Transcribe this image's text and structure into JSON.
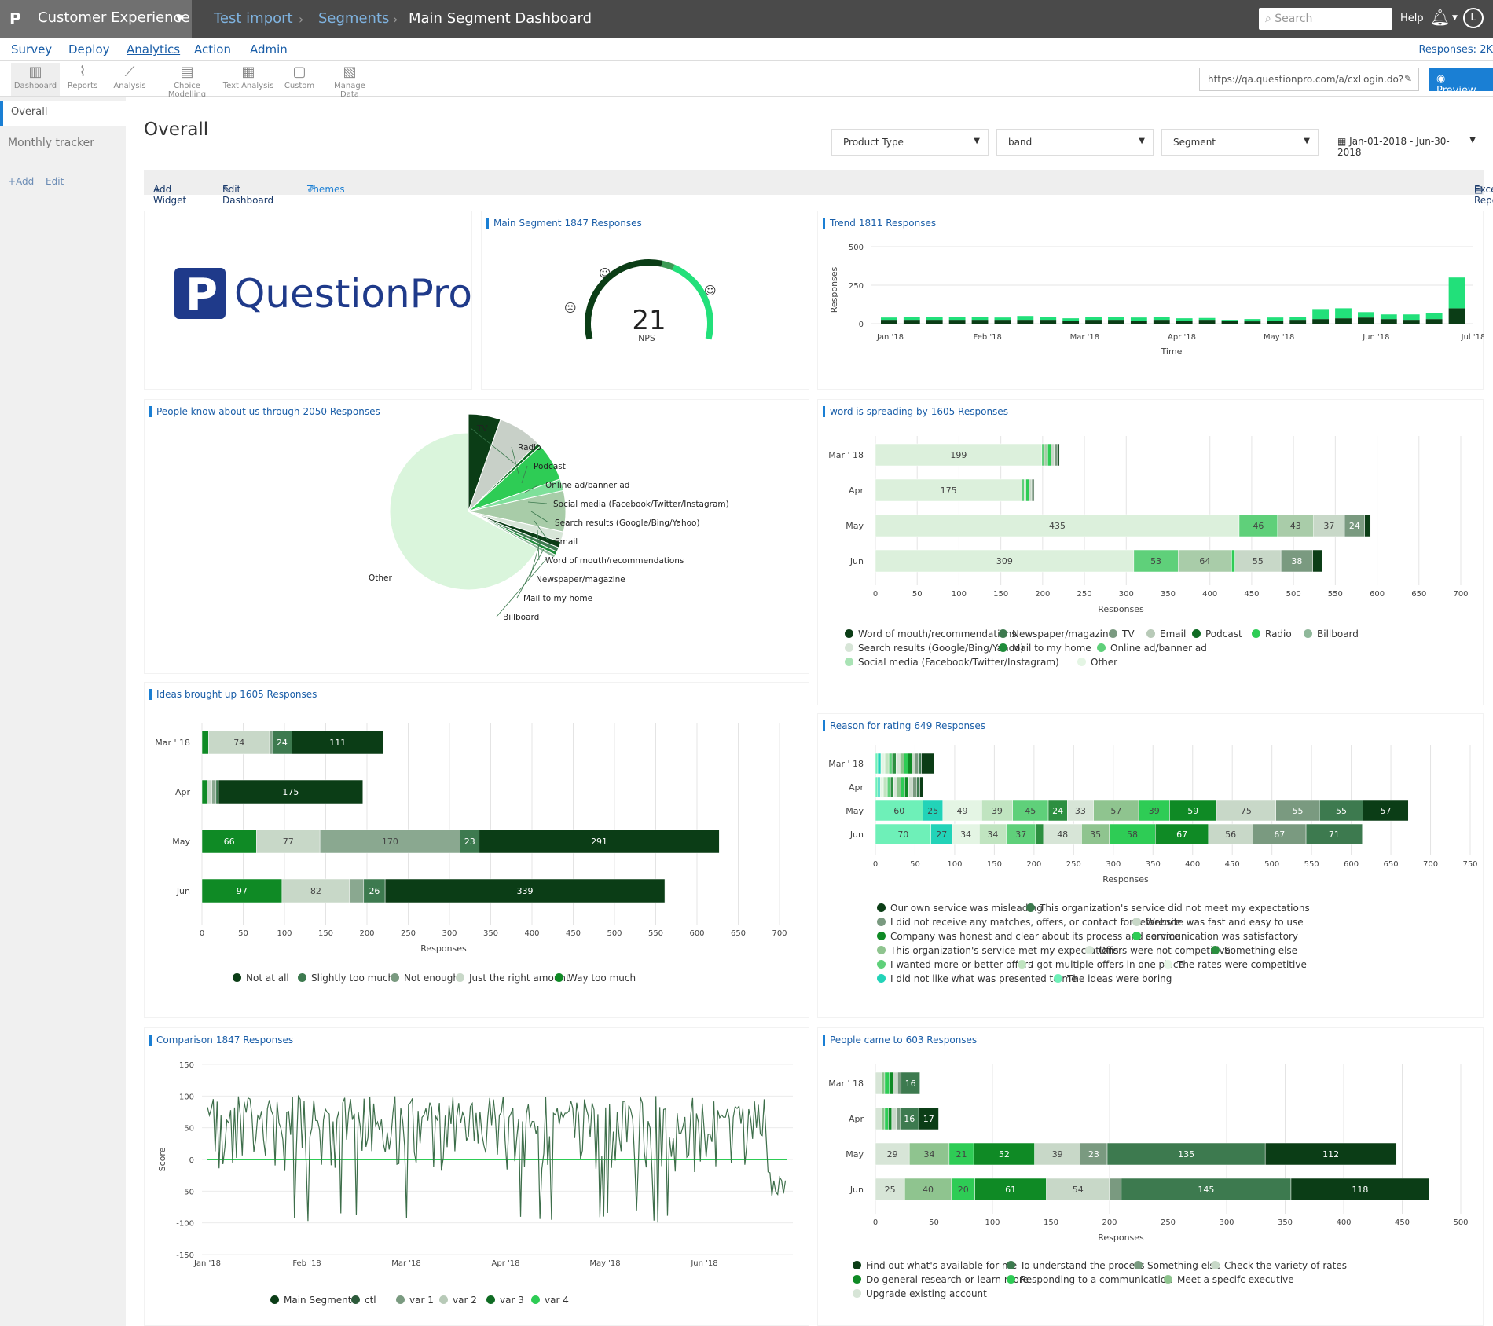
{
  "header": {
    "app_name": "Customer Experience",
    "crumbs": [
      "Test import",
      "Segments",
      "Main Segment Dashboard"
    ],
    "search_placeholder": "Search",
    "help": "Help",
    "avatar": "L"
  },
  "nav": {
    "items": [
      "Survey",
      "Deploy",
      "Analytics",
      "Action",
      "Admin"
    ],
    "active": "Analytics",
    "responses": "Responses: 2K"
  },
  "toolbar": {
    "items": [
      "Dashboard",
      "Reports",
      "Analysis",
      "Choice Modelling",
      "Text Analysis",
      "Custom",
      "Manage Data"
    ],
    "url": "https://qa.questionpro.com/a/cxLogin.do?",
    "preview": "Preview"
  },
  "sidebar": {
    "items": [
      "Overall",
      "Monthly tracker"
    ],
    "add": "+Add",
    "edit": "Edit"
  },
  "page": {
    "title": "Overall",
    "filters": [
      "Product Type",
      "band",
      "Segment"
    ],
    "date_range": "Jan-01-2018 - Jun-30-2018",
    "add_widget": "Add Widget",
    "edit_dashboard": "Edit Dashboard",
    "themes": "Themes",
    "excel_report": "Excel Report"
  },
  "logo_text": "QuestionPro",
  "colors": {
    "dark": "#0b4a1a",
    "mid": "#3d7a4f",
    "bright": "#2ecc55",
    "light": "#c8dcc8",
    "pale": "#e4f5e4",
    "accent": "#1a7fd4"
  },
  "widgets": {
    "nps": {
      "title": "Main Segment",
      "count": "1847 Responses",
      "value": "21",
      "label": "NPS"
    },
    "trend": {
      "title": "Trend",
      "count": "1811 Responses",
      "ylabel": "Responses",
      "xlabel": "Time",
      "yticks": [
        "500",
        "250",
        "0"
      ],
      "xticks": [
        "Jan '18",
        "Feb '18",
        "Mar '18",
        "Apr '18",
        "May '18",
        "Jun '18",
        "Jul '18"
      ]
    },
    "pie": {
      "title": "People know about us through",
      "count": "2050 Responses"
    },
    "spread": {
      "title": "word is spreading by",
      "count": "1605 Responses",
      "xlabel": "Responses"
    },
    "ideas": {
      "title": "Ideas brought up",
      "count": "1605 Responses",
      "xlabel": "Responses"
    },
    "reason": {
      "title": "Reason for rating",
      "count": "649 Responses",
      "xlabel": "Responses"
    },
    "comparison": {
      "title": "Comparison",
      "count": "1847 Responses",
      "ylabel": "Score"
    },
    "came": {
      "title": "People came to",
      "count": "603 Responses",
      "xlabel": "Responses"
    }
  },
  "chart_data": [
    {
      "type": "gauge",
      "title": "Main Segment",
      "value": 21,
      "label": "NPS"
    },
    {
      "type": "bar",
      "title": "Trend",
      "xlabel": "Time",
      "ylabel": "Responses",
      "ylim": [
        0,
        500
      ],
      "x": [
        "Jan 1",
        "Jan 8",
        "Jan 15",
        "Jan 22",
        "Jan 29",
        "Feb 5",
        "Feb 12",
        "Feb 19",
        "Feb 26",
        "Mar 5",
        "Mar 12",
        "Mar 19",
        "Mar 26",
        "Apr 2",
        "Apr 9",
        "Apr 16",
        "Apr 23",
        "Apr 30",
        "May 7",
        "May 14",
        "May 21",
        "May 28",
        "Jun 4",
        "Jun 11",
        "Jun 18",
        "Jun 25"
      ],
      "series": [
        {
          "values": [
            25,
            25,
            25,
            25,
            25,
            25,
            25,
            25,
            20,
            25,
            25,
            20,
            25,
            20,
            25,
            20,
            15,
            20,
            25,
            30,
            35,
            40,
            30,
            25,
            30,
            100
          ]
        },
        {
          "values": [
            15,
            20,
            20,
            20,
            18,
            15,
            25,
            20,
            15,
            20,
            20,
            20,
            20,
            15,
            12,
            5,
            15,
            20,
            20,
            65,
            65,
            35,
            30,
            35,
            40,
            200
          ]
        }
      ],
      "xticks": [
        "Jan '18",
        "Feb '18",
        "Mar '18",
        "Apr '18",
        "May '18",
        "Jun '18",
        "Jul '18"
      ]
    },
    {
      "type": "pie",
      "title": "People know about us through",
      "slices": [
        {
          "label": "TV",
          "value": 110
        },
        {
          "label": "Radio",
          "value": 150
        },
        {
          "label": "Podcast",
          "value": 12
        },
        {
          "label": "Online ad/banner ad",
          "value": 130
        },
        {
          "label": "Social media (Facebook/Twitter/Instagram)",
          "value": 40
        },
        {
          "label": "Search results (Google/Bing/Yahoo)",
          "value": 140
        },
        {
          "label": "Email",
          "value": 35
        },
        {
          "label": "Word of mouth/recommendations",
          "value": 20
        },
        {
          "label": "Newspaper/magazine",
          "value": 15
        },
        {
          "label": "Mail to my home",
          "value": 12
        },
        {
          "label": "Billboard",
          "value": 10
        },
        {
          "label": "Other",
          "value": 1376
        }
      ]
    },
    {
      "type": "bar",
      "title": "word is spreading by",
      "orientation": "horizontal",
      "stacked": true,
      "xlabel": "Responses",
      "xlim": [
        0,
        700
      ],
      "categories": [
        "Mar ' 18",
        "Apr",
        "May",
        "Jun"
      ],
      "series": [
        {
          "name": "Other",
          "values": [
            199,
            175,
            435,
            309
          ]
        },
        {
          "name": "Online ad/banner ad",
          "values": [
            3,
            3,
            46,
            53
          ]
        },
        {
          "name": "Search results (Google/Bing/Yahoo)",
          "values": [
            4,
            2,
            43,
            64
          ]
        },
        {
          "name": "Radio",
          "values": [
            4,
            4,
            0,
            4
          ]
        },
        {
          "name": "Email",
          "values": [
            4,
            3,
            37,
            55
          ]
        },
        {
          "name": "Newspaper/magazine",
          "values": [
            4,
            2,
            24,
            38
          ]
        },
        {
          "name": "Word of mouth/recommendations",
          "values": [
            2,
            1,
            7,
            11
          ]
        }
      ]
    },
    {
      "type": "bar",
      "title": "Ideas brought up",
      "orientation": "horizontal",
      "stacked": true,
      "xlabel": "Responses",
      "xlim": [
        0,
        700
      ],
      "categories": [
        "Mar ' 18",
        "Apr",
        "May",
        "Jun"
      ],
      "series": [
        {
          "name": "Way too much",
          "values": [
            8,
            6,
            66,
            97
          ]
        },
        {
          "name": "Just the right amount",
          "values": [
            74,
            6,
            77,
            82
          ]
        },
        {
          "name": "Not enough",
          "values": [
            3,
            5,
            170,
            17
          ]
        },
        {
          "name": "Slightly too much",
          "values": [
            24,
            3,
            23,
            26
          ]
        },
        {
          "name": "Not at all",
          "values": [
            111,
            175,
            291,
            339
          ]
        }
      ]
    },
    {
      "type": "bar",
      "title": "Reason for rating",
      "orientation": "horizontal",
      "stacked": true,
      "xlabel": "Responses",
      "xlim": [
        0,
        750
      ],
      "categories": [
        "Mar ' 18",
        "Apr",
        "May",
        "Jun"
      ],
      "series": [
        {
          "name": "The ideas were boring",
          "values": [
            3,
            3,
            60,
            70
          ]
        },
        {
          "name": "I did not like what was presented to me",
          "values": [
            4,
            3,
            25,
            27
          ]
        },
        {
          "name": "The rates were competitive",
          "values": [
            5,
            4,
            49,
            34
          ]
        },
        {
          "name": "I got multiple offers in one place",
          "values": [
            5,
            5,
            39,
            34
          ]
        },
        {
          "name": "I wanted more or better offers",
          "values": [
            4,
            4,
            45,
            37
          ]
        },
        {
          "name": "Something else",
          "values": [
            5,
            4,
            24,
            10
          ]
        },
        {
          "name": "Offers were not competitive",
          "values": [
            5,
            4,
            33,
            48
          ]
        },
        {
          "name": "This organization's service met my expectations",
          "values": [
            5,
            5,
            57,
            35
          ]
        },
        {
          "name": "communication was satisfactory",
          "values": [
            5,
            5,
            39,
            58
          ]
        },
        {
          "name": "Company was honest and clear about its process and service",
          "values": [
            5,
            5,
            59,
            67
          ]
        },
        {
          "name": "Website was fast and easy to use",
          "values": [
            4,
            5,
            75,
            56
          ]
        },
        {
          "name": "I did not receive any matches, offers, or contact for reference",
          "values": [
            4,
            5,
            55,
            67
          ]
        },
        {
          "name": "This organization's service did not meet my expectations",
          "values": [
            4,
            4,
            55,
            71
          ]
        },
        {
          "name": "Our own service was misleading",
          "values": [
            16,
            4,
            57,
            0
          ]
        }
      ]
    },
    {
      "type": "line",
      "title": "Comparison",
      "ylabel": "Score",
      "ylim": [
        -150,
        150
      ],
      "x_range": [
        "Jan '18",
        "Jun '18"
      ],
      "series": [
        {
          "name": "Main Segment"
        },
        {
          "name": "ctl"
        },
        {
          "name": "var 1"
        },
        {
          "name": "var 2"
        },
        {
          "name": "var 3"
        },
        {
          "name": "var 4"
        }
      ],
      "xticks": [
        "Jan '18",
        "Feb '18",
        "Mar '18",
        "Apr '18",
        "May '18",
        "Jun '18"
      ],
      "yticks": [
        150,
        100,
        50,
        0,
        -50,
        -100,
        -150
      ]
    },
    {
      "type": "bar",
      "title": "People came to",
      "orientation": "horizontal",
      "stacked": true,
      "xlabel": "Responses",
      "xlim": [
        0,
        500
      ],
      "categories": [
        "Mar ' 18",
        "Apr",
        "May",
        "Jun"
      ],
      "series": [
        {
          "name": "Upgrade existing account",
          "values": [
            5,
            5,
            29,
            25
          ]
        },
        {
          "name": "Check the variety of rates",
          "values": [
            3,
            3,
            34,
            40
          ]
        },
        {
          "name": "Meet a specifc executive",
          "values": [
            4,
            3,
            21,
            20
          ]
        },
        {
          "name": "Do general research or learn more",
          "values": [
            3,
            3,
            52,
            61
          ]
        },
        {
          "name": "Something else",
          "values": [
            4,
            4,
            39,
            54
          ]
        },
        {
          "name": "Responding to a communication",
          "values": [
            3,
            3,
            23,
            10
          ]
        },
        {
          "name": "To understand the process",
          "values": [
            16,
            16,
            135,
            145
          ]
        },
        {
          "name": "Find out what's available for me",
          "values": [
            0,
            17,
            112,
            118
          ]
        }
      ]
    }
  ],
  "legends": {
    "spread": [
      [
        "Word of mouth/recommendations",
        "#0b3d16"
      ],
      [
        "Newspaper/magazine",
        "#3d7a4f"
      ],
      [
        "TV",
        "#7a9a80"
      ],
      [
        "Email",
        "#b8cab8"
      ],
      [
        "Podcast",
        "#0f6b23"
      ],
      [
        "Radio",
        "#2ecc55"
      ],
      [
        "Billboard",
        "#8fb89a"
      ],
      [
        "Search results (Google/Bing/Yahoo)",
        "#d7e5d7"
      ],
      [
        "Mail to my home",
        "#1f8c3a"
      ],
      [
        "Online ad/banner ad",
        "#5fd07a"
      ],
      [
        "Social media (Facebook/Twitter/Instagram)",
        "#a9e3b5"
      ],
      [
        "Other",
        "#e4f5e4"
      ]
    ],
    "ideas": [
      [
        "Not at all",
        "#0b3d16"
      ],
      [
        "Slightly too much",
        "#3d7a4f"
      ],
      [
        "Not enough",
        "#7a9a80"
      ],
      [
        "Just the right amount",
        "#c8d8c8"
      ],
      [
        "Way too much",
        "#0f8a25"
      ]
    ],
    "reason": [
      [
        "Our own service was misleading",
        "#0b3d16"
      ],
      [
        "This organization's service did not meet my expectations",
        "#3d7a4f"
      ],
      [
        "I did not receive any matches, offers, or contact for reference",
        "#7a9a80"
      ],
      [
        "Website was fast and easy to use",
        "#c8d8c8"
      ],
      [
        "Company was honest and clear about its process and service",
        "#0f8a25"
      ],
      [
        "communication was satisfactory",
        "#2ecc55"
      ],
      [
        "This organization's service met my expectations",
        "#8fc48f"
      ],
      [
        "Offers were not competitive",
        "#d7e5d7"
      ],
      [
        "Something else",
        "#2c8f40"
      ],
      [
        "I wanted more or better offers",
        "#5fd07a"
      ],
      [
        "I got multiple offers in one place",
        "#c0e4c0"
      ],
      [
        "The rates were competitive",
        "#e4f5e4"
      ],
      [
        "I did not like what was presented to me",
        "#22d3b8"
      ],
      [
        "The ideas were boring",
        "#6ef0b8"
      ]
    ],
    "comparison": [
      [
        "Main Segment",
        "#0b3d16"
      ],
      [
        "ctl",
        "#2d5a3a"
      ],
      [
        "var 1",
        "#7a9a80"
      ],
      [
        "var 2",
        "#b8cab8"
      ],
      [
        "var 3",
        "#0f6b23"
      ],
      [
        "var 4",
        "#2ecc55"
      ]
    ],
    "came": [
      [
        "Find out what's available for me",
        "#0b3d16"
      ],
      [
        "To understand the process",
        "#3d7a4f"
      ],
      [
        "Something else",
        "#7a9a80"
      ],
      [
        "Check the variety of rates",
        "#c8d8c8"
      ],
      [
        "Do general research or learn more",
        "#0f8a25"
      ],
      [
        "Responding to a communication",
        "#2ecc55"
      ],
      [
        "Meet a specifc executive",
        "#8fc48f"
      ],
      [
        "Upgrade existing account",
        "#d7e5d7"
      ]
    ]
  }
}
